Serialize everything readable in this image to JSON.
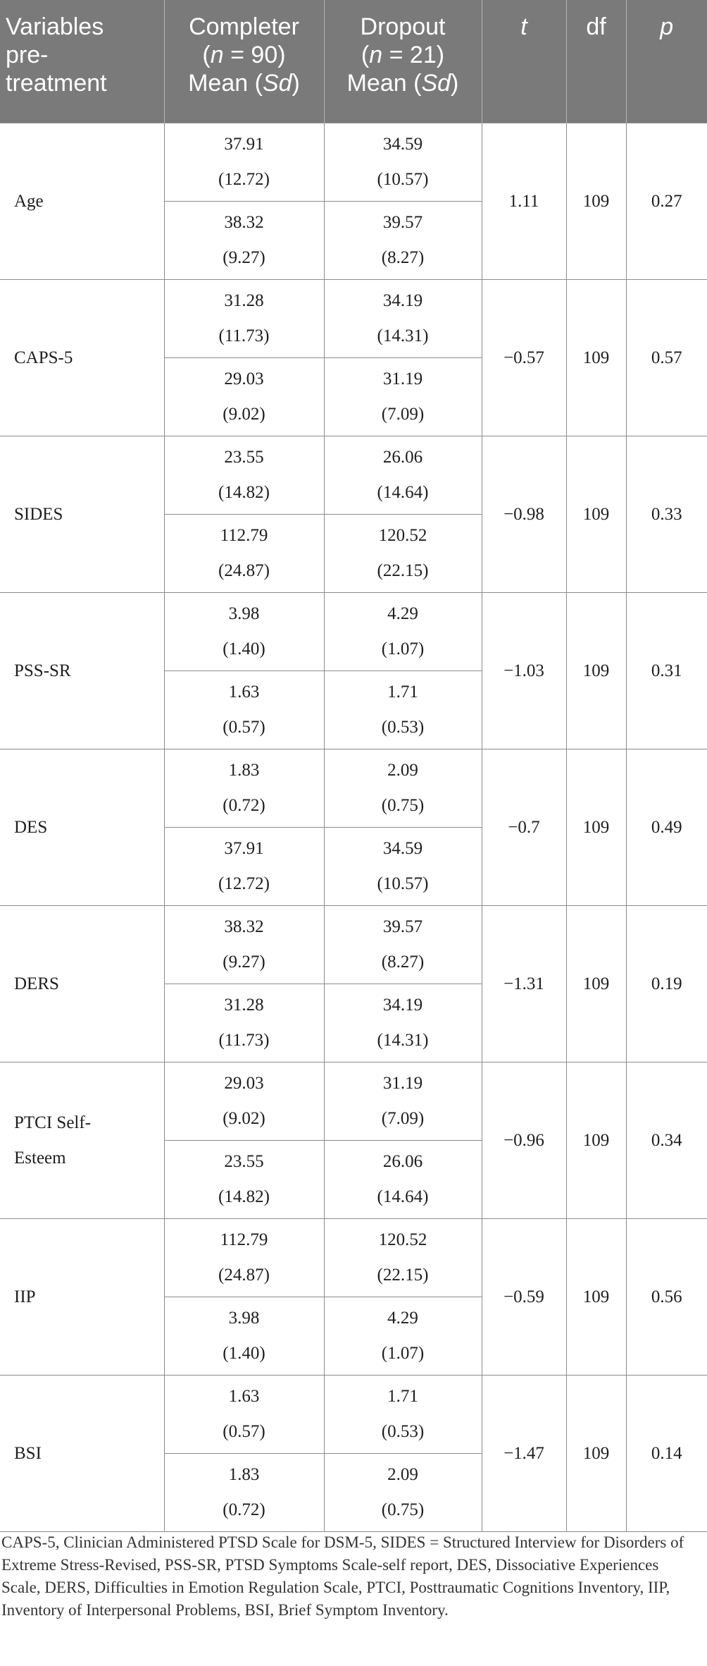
{
  "table": {
    "headers": {
      "variables": [
        "Variables",
        "pre-",
        "treatment"
      ],
      "completer": {
        "line1": "Completer",
        "n_label": "n",
        "n_value": "= 90)",
        "mean": "Mean",
        "sd": "Sd"
      },
      "dropout": {
        "line1": "Dropout",
        "n_label": "n",
        "n_value": "= 21)",
        "mean": "Mean",
        "sd": "Sd"
      },
      "t": "t",
      "df": "df",
      "p": "p"
    },
    "rows": [
      {
        "variable": [
          "Age"
        ],
        "t": "1.11",
        "df": "109",
        "p": "0.27",
        "values": [
          {
            "completer_mean": "37.91",
            "completer_sd": "(12.72)",
            "dropout_mean": "34.59",
            "dropout_sd": "(10.57)"
          },
          {
            "completer_mean": "38.32",
            "completer_sd": "(9.27)",
            "dropout_mean": "39.57",
            "dropout_sd": "(8.27)"
          }
        ]
      },
      {
        "variable": [
          "CAPS-5"
        ],
        "t": "−0.57",
        "df": "109",
        "p": "0.57",
        "values": [
          {
            "completer_mean": "31.28",
            "completer_sd": "(11.73)",
            "dropout_mean": "34.19",
            "dropout_sd": "(14.31)"
          },
          {
            "completer_mean": "29.03",
            "completer_sd": "(9.02)",
            "dropout_mean": "31.19",
            "dropout_sd": "(7.09)"
          }
        ]
      },
      {
        "variable": [
          "SIDES"
        ],
        "t": "−0.98",
        "df": "109",
        "p": "0.33",
        "values": [
          {
            "completer_mean": "23.55",
            "completer_sd": "(14.82)",
            "dropout_mean": "26.06",
            "dropout_sd": "(14.64)"
          },
          {
            "completer_mean": "112.79",
            "completer_sd": "(24.87)",
            "dropout_mean": "120.52",
            "dropout_sd": "(22.15)"
          }
        ]
      },
      {
        "variable": [
          "PSS-SR"
        ],
        "t": "−1.03",
        "df": "109",
        "p": "0.31",
        "values": [
          {
            "completer_mean": "3.98",
            "completer_sd": "(1.40)",
            "dropout_mean": "4.29",
            "dropout_sd": "(1.07)"
          },
          {
            "completer_mean": "1.63",
            "completer_sd": "(0.57)",
            "dropout_mean": "1.71",
            "dropout_sd": "(0.53)"
          }
        ]
      },
      {
        "variable": [
          "DES"
        ],
        "t": "−0.7",
        "df": "109",
        "p": "0.49",
        "values": [
          {
            "completer_mean": "1.83",
            "completer_sd": "(0.72)",
            "dropout_mean": "2.09",
            "dropout_sd": "(0.75)"
          },
          {
            "completer_mean": "37.91",
            "completer_sd": "(12.72)",
            "dropout_mean": "34.59",
            "dropout_sd": "(10.57)"
          }
        ]
      },
      {
        "variable": [
          "DERS"
        ],
        "t": "−1.31",
        "df": "109",
        "p": "0.19",
        "values": [
          {
            "completer_mean": "38.32",
            "completer_sd": "(9.27)",
            "dropout_mean": "39.57",
            "dropout_sd": "(8.27)"
          },
          {
            "completer_mean": "31.28",
            "completer_sd": "(11.73)",
            "dropout_mean": "34.19",
            "dropout_sd": "(14.31)"
          }
        ]
      },
      {
        "variable": [
          "PTCI Self-",
          "Esteem"
        ],
        "t": "−0.96",
        "df": "109",
        "p": "0.34",
        "values": [
          {
            "completer_mean": "29.03",
            "completer_sd": "(9.02)",
            "dropout_mean": "31.19",
            "dropout_sd": "(7.09)"
          },
          {
            "completer_mean": "23.55",
            "completer_sd": "(14.82)",
            "dropout_mean": "26.06",
            "dropout_sd": "(14.64)"
          }
        ]
      },
      {
        "variable": [
          "IIP"
        ],
        "t": "−0.59",
        "df": "109",
        "p": "0.56",
        "values": [
          {
            "completer_mean": "112.79",
            "completer_sd": "(24.87)",
            "dropout_mean": "120.52",
            "dropout_sd": "(22.15)"
          },
          {
            "completer_mean": "3.98",
            "completer_sd": "(1.40)",
            "dropout_mean": "4.29",
            "dropout_sd": "(1.07)"
          }
        ]
      },
      {
        "variable": [
          "BSI"
        ],
        "t": "−1.47",
        "df": "109",
        "p": "0.14",
        "values": [
          {
            "completer_mean": "1.63",
            "completer_sd": "(0.57)",
            "dropout_mean": "1.71",
            "dropout_sd": "(0.53)"
          },
          {
            "completer_mean": "1.83",
            "completer_sd": "(0.72)",
            "dropout_mean": "2.09",
            "dropout_sd": "(0.75)"
          }
        ]
      }
    ]
  },
  "footnote": "CAPS-5, Clinician Administered PTSD Scale for DSM-5, SIDES = Structured Interview for Disorders of Extreme Stress-Revised, PSS-SR, PTSD Symptoms Scale-self report, DES, Dissociative Experiences Scale, DERS, Difficulties in Emotion Regulation Scale, PTCI, Posttraumatic Cognitions Inventory, IIP, Inventory of Interpersonal Problems, BSI, Brief Symptom Inventory.",
  "colors": {
    "header_bg": "#7a7a7a",
    "header_text": "#ffffff",
    "border": "#8c8c8c",
    "text": "#1e1e1e"
  }
}
